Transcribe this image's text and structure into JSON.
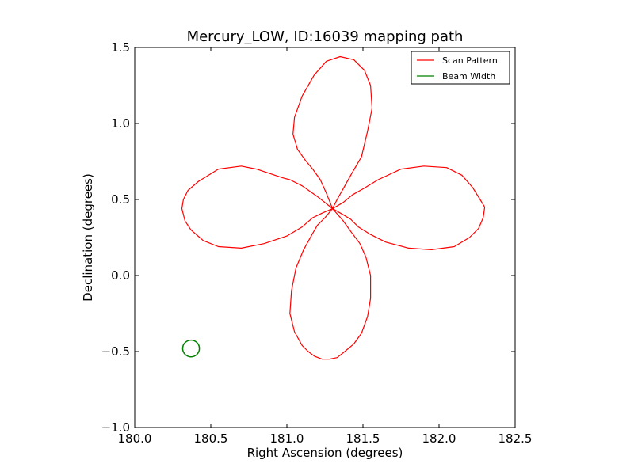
{
  "chart_data": {
    "type": "line",
    "title": "Mercury_LOW, ID:16039 mapping path",
    "xlabel": "Right Ascension (degrees)",
    "ylabel": "Declination (degrees)",
    "xlim": [
      180.0,
      182.5
    ],
    "ylim": [
      -1.0,
      1.5
    ],
    "xticks": [
      "180.0",
      "180.5",
      "181.0",
      "181.5",
      "182.0",
      "182.5"
    ],
    "xtick_values": [
      180.0,
      180.5,
      181.0,
      181.5,
      182.0,
      182.5
    ],
    "yticks": [
      "1.5",
      "1.0",
      "0.5",
      "0.0",
      "−0.5",
      "−1.0"
    ],
    "ytick_values": [
      1.5,
      1.0,
      0.5,
      0.0,
      -0.5,
      -1.0
    ],
    "grid": false,
    "legend_position": "top-right",
    "series": [
      {
        "name": "Scan Pattern",
        "color": "#ff0000",
        "x": [
          181.3,
          181.2,
          181.1,
          181.02,
          180.98,
          180.95,
          180.8,
          180.7,
          180.55,
          180.42,
          180.35,
          180.32,
          180.31,
          180.33,
          180.37,
          180.45,
          180.55,
          180.7,
          180.85,
          181.0,
          181.1,
          181.17,
          181.23,
          181.3,
          181.37,
          181.43,
          181.5,
          181.6,
          181.75,
          181.9,
          182.05,
          182.15,
          182.22,
          182.27,
          182.3,
          182.29,
          182.26,
          182.2,
          182.1,
          181.95,
          181.8,
          181.65,
          181.55,
          181.47,
          181.42,
          181.37,
          181.3,
          181.33,
          181.37,
          181.42,
          181.49,
          181.53,
          181.56,
          181.55,
          181.51,
          181.44,
          181.35,
          181.26,
          181.18,
          181.1,
          181.05,
          181.04,
          181.07,
          181.12,
          181.17,
          181.22,
          181.26,
          181.3,
          181.25,
          181.2,
          181.16,
          181.11,
          181.06,
          181.03,
          181.02,
          181.05,
          181.1,
          181.14,
          181.18,
          181.23,
          181.28,
          181.33,
          181.38,
          181.44,
          181.49,
          181.53,
          181.55,
          181.55,
          181.52,
          181.48,
          181.42,
          181.37,
          181.3
        ],
        "y": [
          0.44,
          0.52,
          0.59,
          0.63,
          0.64,
          0.65,
          0.7,
          0.72,
          0.7,
          0.62,
          0.56,
          0.5,
          0.44,
          0.36,
          0.3,
          0.23,
          0.19,
          0.18,
          0.21,
          0.26,
          0.32,
          0.38,
          0.41,
          0.44,
          0.48,
          0.53,
          0.57,
          0.63,
          0.7,
          0.72,
          0.71,
          0.66,
          0.58,
          0.5,
          0.45,
          0.38,
          0.31,
          0.25,
          0.19,
          0.17,
          0.18,
          0.22,
          0.27,
          0.32,
          0.37,
          0.4,
          0.44,
          0.5,
          0.57,
          0.66,
          0.78,
          0.95,
          1.1,
          1.25,
          1.35,
          1.42,
          1.44,
          1.41,
          1.32,
          1.18,
          1.04,
          0.93,
          0.83,
          0.76,
          0.7,
          0.63,
          0.54,
          0.44,
          0.38,
          0.33,
          0.26,
          0.17,
          0.05,
          -0.1,
          -0.25,
          -0.37,
          -0.46,
          -0.5,
          -0.53,
          -0.55,
          -0.55,
          -0.54,
          -0.5,
          -0.45,
          -0.38,
          -0.27,
          -0.15,
          0.0,
          0.12,
          0.21,
          0.29,
          0.36,
          0.44
        ]
      },
      {
        "name": "Beam Width",
        "color": "#008000",
        "center": [
          180.37,
          -0.48
        ],
        "radius_deg": 0.055
      }
    ]
  }
}
